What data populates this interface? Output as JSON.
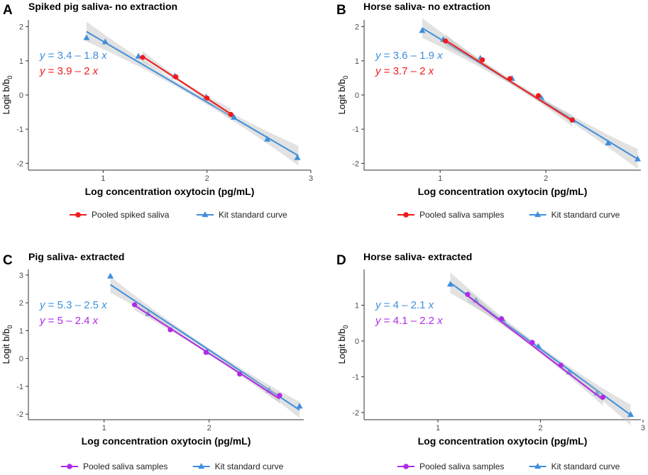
{
  "colors": {
    "kit": "#3f8fdc",
    "red": "#f21a1a",
    "purple": "#b02ae6",
    "band": "#bfbfbf",
    "axis": "#333333",
    "tick_text": "#4d4d4d"
  },
  "chart_data": [
    {
      "type": "scatter",
      "panel_letter": "A",
      "title": "Spiked pig saliva- no extraction",
      "xlabel": "Log concentration oxytocin (pg/mL)",
      "ylabel_main": "Logit b/b",
      "ylabel_sub": "0",
      "xlim": [
        0.28,
        3.0
      ],
      "ylim": [
        -2.2,
        2.2
      ],
      "xticks": [
        1,
        2,
        3
      ],
      "yticks": [
        -2,
        -1,
        0,
        1,
        2
      ],
      "series": [
        {
          "name": "Kit standard curve",
          "color": "#3f8fdc",
          "marker": "triangle",
          "equation": "y = 3.4 – 1.8 x",
          "fit": {
            "intercept": 3.35,
            "slope": -1.78,
            "x_range": [
              0.84,
              2.88
            ]
          },
          "band": true,
          "points": [
            [
              0.84,
              1.67
            ],
            [
              1.02,
              1.55
            ],
            [
              1.34,
              1.13
            ],
            [
              1.69,
              0.55
            ],
            [
              1.99,
              -0.06
            ],
            [
              2.26,
              -0.66
            ],
            [
              2.58,
              -1.3
            ],
            [
              2.87,
              -1.84
            ]
          ]
        },
        {
          "name": "Pooled spiked saliva",
          "color": "#f21a1a",
          "marker": "circle",
          "equation": "y = 3.9 – 2 x",
          "fit": {
            "intercept": 3.86,
            "slope": -1.98,
            "x_range": [
              1.38,
              2.23
            ]
          },
          "band": true,
          "points": [
            [
              1.38,
              1.1
            ],
            [
              1.7,
              0.53
            ],
            [
              2.0,
              -0.09
            ],
            [
              2.23,
              -0.57
            ]
          ]
        }
      ],
      "legend": [
        "Pooled spiked saliva",
        "Kit standard curve"
      ]
    },
    {
      "type": "scatter",
      "panel_letter": "B",
      "title": "Horse saliva- no extraction",
      "xlabel": "Log concentration oxytocin (pg/mL)",
      "ylabel_main": "Logit b/b",
      "ylabel_sub": "0",
      "xlim": [
        0.28,
        2.9
      ],
      "ylim": [
        -2.2,
        2.2
      ],
      "xticks": [
        1,
        2
      ],
      "yticks": [
        -2,
        -1,
        0,
        1,
        2
      ],
      "series": [
        {
          "name": "Kit standard curve",
          "color": "#3f8fdc",
          "marker": "triangle",
          "equation": "y = 3.6 – 1.9 x",
          "fit": {
            "intercept": 3.52,
            "slope": -1.88,
            "x_range": [
              0.83,
              2.87
            ]
          },
          "band": true,
          "points": [
            [
              0.83,
              1.88
            ],
            [
              1.03,
              1.62
            ],
            [
              1.38,
              1.07
            ],
            [
              1.68,
              0.48
            ],
            [
              1.96,
              -0.1
            ],
            [
              2.26,
              -0.74
            ],
            [
              2.59,
              -1.41
            ],
            [
              2.87,
              -1.88
            ]
          ]
        },
        {
          "name": "Pooled saliva samples",
          "color": "#f21a1a",
          "marker": "circle",
          "equation": "y = 3.7 – 2 x",
          "fit": {
            "intercept": 3.66,
            "slope": -1.96,
            "x_range": [
              1.05,
              2.25
            ]
          },
          "band": true,
          "points": [
            [
              1.05,
              1.58
            ],
            [
              1.4,
              1.03
            ],
            [
              1.66,
              0.48
            ],
            [
              1.93,
              -0.02
            ],
            [
              2.25,
              -0.73
            ]
          ]
        }
      ],
      "legend": [
        "Pooled saliva samples",
        "Kit standard curve"
      ]
    },
    {
      "type": "scatter",
      "panel_letter": "C",
      "title": "Pig saliva- extracted",
      "xlabel": "Log concentration oxytocin (pg/mL)",
      "ylabel_main": "Logit b/b",
      "ylabel_sub": "0",
      "xlim": [
        0.28,
        2.9
      ],
      "ylim": [
        -2.2,
        3.2
      ],
      "xticks": [
        1,
        2
      ],
      "yticks": [
        -2,
        -1,
        0,
        1,
        2,
        3
      ],
      "series": [
        {
          "name": "Kit standard curve",
          "color": "#3f8fdc",
          "marker": "triangle",
          "equation": "y = 5.3 – 2.5 x",
          "fit": {
            "intercept": 5.3,
            "slope": -2.5,
            "x_range": [
              1.06,
              2.86
            ]
          },
          "band": true,
          "points": [
            [
              1.06,
              2.95
            ],
            [
              1.42,
              1.6
            ],
            [
              1.98,
              0.22
            ],
            [
              2.57,
              -1.15
            ],
            [
              2.86,
              -1.72
            ]
          ]
        },
        {
          "name": "Pooled saliva samples",
          "color": "#b02ae6",
          "marker": "circle",
          "equation": "y = 5 – 2.4 x",
          "fit": {
            "intercept": 5.04,
            "slope": -2.43,
            "x_range": [
              1.29,
              2.67
            ]
          },
          "band": true,
          "points": [
            [
              1.29,
              1.93
            ],
            [
              1.63,
              1.03
            ],
            [
              1.97,
              0.22
            ],
            [
              2.29,
              -0.56
            ],
            [
              2.67,
              -1.33
            ]
          ]
        }
      ],
      "legend": [
        "Pooled saliva samples",
        "Kit standard curve"
      ]
    },
    {
      "type": "scatter",
      "panel_letter": "D",
      "title": "Horse saliva- extracted",
      "xlabel": "Log concentration oxytocin (pg/mL)",
      "ylabel_main": "Logit b/b",
      "ylabel_sub": "0",
      "xlim": [
        0.28,
        2.98
      ],
      "ylim": [
        -2.2,
        2.0
      ],
      "xticks": [
        1,
        2,
        3
      ],
      "yticks": [
        -2,
        -1,
        0,
        1
      ],
      "series": [
        {
          "name": "Kit standard curve",
          "color": "#3f8fdc",
          "marker": "triangle",
          "equation": "y = 4 – 2.1 x",
          "fit": {
            "intercept": 3.98,
            "slope": -2.1,
            "x_range": [
              1.12,
              2.88
            ]
          },
          "band": true,
          "points": [
            [
              1.12,
              1.58
            ],
            [
              1.37,
              1.13
            ],
            [
              1.63,
              0.6
            ],
            [
              1.98,
              -0.16
            ],
            [
              2.28,
              -0.87
            ],
            [
              2.55,
              -1.46
            ],
            [
              2.88,
              -2.06
            ]
          ]
        },
        {
          "name": "Pooled saliva samples",
          "color": "#b02ae6",
          "marker": "circle",
          "equation": "y = 4.1 – 2.2 x",
          "fit": {
            "intercept": 4.1,
            "slope": -2.2,
            "x_range": [
              1.29,
              2.61
            ]
          },
          "band": true,
          "points": [
            [
              1.29,
              1.3
            ],
            [
              1.62,
              0.62
            ],
            [
              1.92,
              -0.04
            ],
            [
              2.2,
              -0.68
            ],
            [
              2.61,
              -1.57
            ]
          ]
        }
      ],
      "legend": [
        "Pooled saliva samples",
        "Kit standard curve"
      ]
    }
  ]
}
